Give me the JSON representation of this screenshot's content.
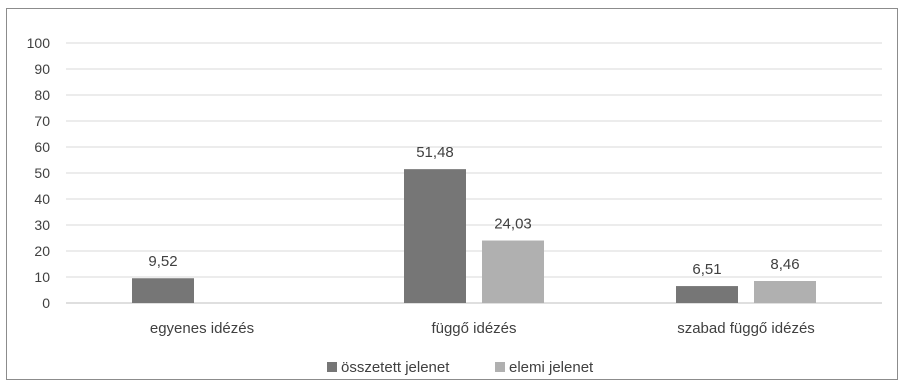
{
  "chart_data": {
    "type": "bar",
    "categories": [
      "egyenes idézés",
      "függő idézés",
      "szabad függő idézés"
    ],
    "series": [
      {
        "name": "összetett jelenet",
        "values": [
          9.52,
          51.48,
          6.51
        ],
        "labels": [
          "9,52",
          "51,48",
          "6,51"
        ],
        "color": "#767676"
      },
      {
        "name": "elemi jelenet",
        "values": [
          null,
          24.03,
          8.46
        ],
        "labels": [
          "",
          "24,03",
          "8,46"
        ],
        "color": "#b0b0b0"
      }
    ],
    "y_ticks": [
      "0",
      "10",
      "20",
      "30",
      "40",
      "50",
      "60",
      "70",
      "80",
      "90",
      "100"
    ],
    "ylim": [
      0,
      100
    ],
    "grid": true,
    "legend_position": "bottom"
  }
}
